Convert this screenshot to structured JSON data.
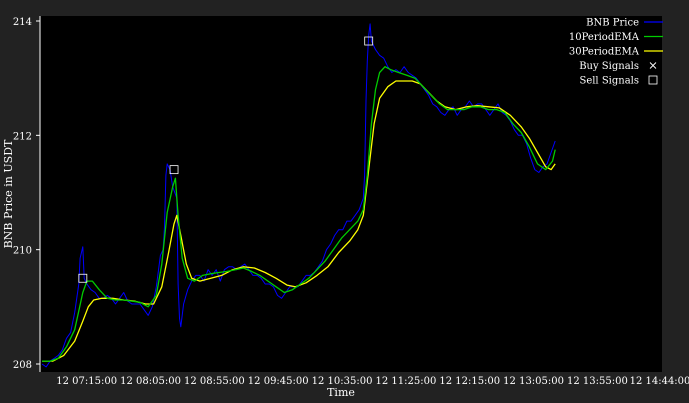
{
  "chart_data": {
    "type": "line",
    "title": "",
    "xlabel": "Time",
    "ylabel": "BNB Price in USDT",
    "ylim": [
      208,
      214
    ],
    "yticks": [
      208,
      210,
      212,
      214
    ],
    "x_range_minutes": [
      0,
      454
    ],
    "xticks": [
      {
        "label": "12 07:15:00",
        "minute": 35
      },
      {
        "label": "12 08:05:00",
        "minute": 85
      },
      {
        "label": "12 08:55:00",
        "minute": 135
      },
      {
        "label": "12 09:45:00",
        "minute": 185
      },
      {
        "label": "12 10:35:00",
        "minute": 235
      },
      {
        "label": "12 11:25:00",
        "minute": 285
      },
      {
        "label": "12 12:15:00",
        "minute": 335
      },
      {
        "label": "12 13:05:00",
        "minute": 385
      },
      {
        "label": "12 13:55:00",
        "minute": 435
      },
      {
        "label": "12 14:44:00",
        "minute": 484
      }
    ],
    "legend_placement": "top-right",
    "colors": {
      "price": "#0000ff",
      "ema10": "#00cc00",
      "ema30": "#ffff00",
      "background": "#000000",
      "markers": "#ffffff"
    },
    "series": [
      {
        "name": "BNB Price",
        "key": "price",
        "points": [
          [
            0,
            208.0
          ],
          [
            3,
            207.95
          ],
          [
            6,
            208.05
          ],
          [
            9,
            208.1
          ],
          [
            12,
            208.15
          ],
          [
            15,
            208.25
          ],
          [
            18,
            208.45
          ],
          [
            21,
            208.55
          ],
          [
            24,
            208.9
          ],
          [
            27,
            209.4
          ],
          [
            28,
            209.85
          ],
          [
            30,
            210.05
          ],
          [
            31,
            209.5
          ],
          [
            33,
            209.4
          ],
          [
            36,
            209.3
          ],
          [
            39,
            209.25
          ],
          [
            42,
            209.15
          ],
          [
            45,
            209.15
          ],
          [
            48,
            209.2
          ],
          [
            51,
            209.15
          ],
          [
            54,
            209.05
          ],
          [
            57,
            209.15
          ],
          [
            60,
            209.25
          ],
          [
            63,
            209.1
          ],
          [
            66,
            209.05
          ],
          [
            69,
            209.05
          ],
          [
            72,
            209.05
          ],
          [
            75,
            208.95
          ],
          [
            78,
            208.85
          ],
          [
            81,
            209.0
          ],
          [
            84,
            209.35
          ],
          [
            87,
            209.9
          ],
          [
            89,
            210.0
          ],
          [
            90,
            210.4
          ],
          [
            91,
            211.3
          ],
          [
            92,
            211.5
          ],
          [
            94,
            211.4
          ],
          [
            96,
            211.1
          ],
          [
            99,
            210.9
          ],
          [
            100,
            209.4
          ],
          [
            101,
            208.8
          ],
          [
            102,
            208.65
          ],
          [
            104,
            209.05
          ],
          [
            107,
            209.3
          ],
          [
            110,
            209.45
          ],
          [
            113,
            209.55
          ],
          [
            116,
            209.55
          ],
          [
            119,
            209.45
          ],
          [
            122,
            209.65
          ],
          [
            125,
            209.55
          ],
          [
            128,
            209.65
          ],
          [
            131,
            209.45
          ],
          [
            134,
            209.65
          ],
          [
            137,
            209.7
          ],
          [
            140,
            209.7
          ],
          [
            143,
            209.65
          ],
          [
            146,
            209.7
          ],
          [
            149,
            209.75
          ],
          [
            152,
            209.65
          ],
          [
            155,
            209.55
          ],
          [
            158,
            209.55
          ],
          [
            161,
            209.5
          ],
          [
            164,
            209.4
          ],
          [
            167,
            209.4
          ],
          [
            170,
            209.35
          ],
          [
            173,
            209.2
          ],
          [
            176,
            209.15
          ],
          [
            179,
            209.25
          ],
          [
            182,
            209.35
          ],
          [
            185,
            209.35
          ],
          [
            188,
            209.35
          ],
          [
            191,
            209.45
          ],
          [
            194,
            209.55
          ],
          [
            197,
            209.55
          ],
          [
            200,
            209.6
          ],
          [
            203,
            209.7
          ],
          [
            206,
            209.8
          ],
          [
            209,
            210.0
          ],
          [
            212,
            210.1
          ],
          [
            215,
            210.25
          ],
          [
            218,
            210.35
          ],
          [
            221,
            210.35
          ],
          [
            224,
            210.5
          ],
          [
            227,
            210.5
          ],
          [
            230,
            210.6
          ],
          [
            233,
            210.7
          ],
          [
            236,
            210.9
          ],
          [
            237,
            211.3
          ],
          [
            238,
            212.6
          ],
          [
            239,
            213.3
          ],
          [
            240,
            213.75
          ],
          [
            241,
            213.95
          ],
          [
            242,
            213.65
          ],
          [
            245,
            213.5
          ],
          [
            248,
            213.4
          ],
          [
            251,
            213.35
          ],
          [
            254,
            213.2
          ],
          [
            257,
            213.1
          ],
          [
            260,
            213.15
          ],
          [
            263,
            213.1
          ],
          [
            266,
            213.2
          ],
          [
            269,
            213.1
          ],
          [
            272,
            213.05
          ],
          [
            275,
            213.0
          ],
          [
            278,
            212.9
          ],
          [
            281,
            212.8
          ],
          [
            284,
            212.7
          ],
          [
            287,
            212.55
          ],
          [
            290,
            212.5
          ],
          [
            293,
            212.4
          ],
          [
            296,
            212.35
          ],
          [
            299,
            212.45
          ],
          [
            302,
            212.5
          ],
          [
            305,
            212.35
          ],
          [
            308,
            212.45
          ],
          [
            311,
            212.5
          ],
          [
            314,
            212.6
          ],
          [
            317,
            212.5
          ],
          [
            320,
            212.55
          ],
          [
            323,
            212.55
          ],
          [
            326,
            212.45
          ],
          [
            329,
            212.35
          ],
          [
            332,
            212.45
          ],
          [
            335,
            212.55
          ],
          [
            338,
            212.4
          ],
          [
            341,
            212.35
          ],
          [
            344,
            212.25
          ],
          [
            347,
            212.1
          ],
          [
            350,
            212.0
          ],
          [
            353,
            212.0
          ],
          [
            356,
            211.85
          ],
          [
            359,
            211.6
          ],
          [
            362,
            211.4
          ],
          [
            365,
            211.35
          ],
          [
            368,
            211.45
          ],
          [
            371,
            211.5
          ],
          [
            374,
            211.7
          ],
          [
            377,
            211.9
          ]
        ]
      },
      {
        "name": "10PeriodEMA",
        "key": "ema10",
        "points": [
          [
            0,
            208.05
          ],
          [
            6,
            208.05
          ],
          [
            12,
            208.1
          ],
          [
            18,
            208.3
          ],
          [
            24,
            208.6
          ],
          [
            30,
            209.25
          ],
          [
            33,
            209.45
          ],
          [
            37,
            209.45
          ],
          [
            42,
            209.3
          ],
          [
            48,
            209.15
          ],
          [
            54,
            209.12
          ],
          [
            60,
            209.12
          ],
          [
            66,
            209.1
          ],
          [
            72,
            209.08
          ],
          [
            78,
            209.0
          ],
          [
            84,
            209.2
          ],
          [
            88,
            209.75
          ],
          [
            92,
            210.65
          ],
          [
            96,
            211.1
          ],
          [
            98,
            211.25
          ],
          [
            100,
            210.6
          ],
          [
            103,
            209.85
          ],
          [
            107,
            209.5
          ],
          [
            112,
            209.45
          ],
          [
            118,
            209.55
          ],
          [
            124,
            209.58
          ],
          [
            130,
            209.6
          ],
          [
            136,
            209.62
          ],
          [
            142,
            209.65
          ],
          [
            148,
            209.68
          ],
          [
            154,
            209.62
          ],
          [
            160,
            209.55
          ],
          [
            166,
            209.45
          ],
          [
            172,
            209.35
          ],
          [
            178,
            209.25
          ],
          [
            184,
            209.3
          ],
          [
            190,
            209.4
          ],
          [
            196,
            209.5
          ],
          [
            202,
            209.65
          ],
          [
            208,
            209.8
          ],
          [
            214,
            210.0
          ],
          [
            220,
            210.2
          ],
          [
            226,
            210.35
          ],
          [
            232,
            210.5
          ],
          [
            236,
            210.7
          ],
          [
            239,
            211.3
          ],
          [
            242,
            212.2
          ],
          [
            245,
            212.8
          ],
          [
            248,
            213.1
          ],
          [
            252,
            213.2
          ],
          [
            256,
            213.15
          ],
          [
            262,
            213.1
          ],
          [
            268,
            213.05
          ],
          [
            274,
            213.0
          ],
          [
            280,
            212.85
          ],
          [
            286,
            212.7
          ],
          [
            292,
            212.55
          ],
          [
            298,
            212.45
          ],
          [
            304,
            212.45
          ],
          [
            310,
            212.45
          ],
          [
            316,
            212.5
          ],
          [
            322,
            212.5
          ],
          [
            328,
            212.45
          ],
          [
            334,
            212.45
          ],
          [
            340,
            212.4
          ],
          [
            346,
            212.2
          ],
          [
            352,
            212.05
          ],
          [
            358,
            211.8
          ],
          [
            364,
            211.5
          ],
          [
            370,
            211.4
          ],
          [
            375,
            211.55
          ],
          [
            377,
            211.75
          ]
        ]
      },
      {
        "name": "30PeriodEMA",
        "key": "ema30",
        "points": [
          [
            0,
            208.05
          ],
          [
            8,
            208.05
          ],
          [
            16,
            208.15
          ],
          [
            24,
            208.4
          ],
          [
            30,
            208.75
          ],
          [
            34,
            209.0
          ],
          [
            38,
            209.12
          ],
          [
            44,
            209.15
          ],
          [
            52,
            209.15
          ],
          [
            60,
            209.12
          ],
          [
            68,
            209.1
          ],
          [
            76,
            209.05
          ],
          [
            82,
            209.05
          ],
          [
            88,
            209.35
          ],
          [
            93,
            209.95
          ],
          [
            97,
            210.45
          ],
          [
            99,
            210.6
          ],
          [
            102,
            210.25
          ],
          [
            106,
            209.75
          ],
          [
            110,
            209.5
          ],
          [
            116,
            209.45
          ],
          [
            124,
            209.5
          ],
          [
            132,
            209.55
          ],
          [
            140,
            209.65
          ],
          [
            148,
            209.7
          ],
          [
            156,
            209.68
          ],
          [
            164,
            209.6
          ],
          [
            172,
            209.5
          ],
          [
            180,
            209.38
          ],
          [
            186,
            209.35
          ],
          [
            194,
            209.42
          ],
          [
            202,
            209.55
          ],
          [
            210,
            209.7
          ],
          [
            218,
            209.95
          ],
          [
            226,
            210.15
          ],
          [
            232,
            210.35
          ],
          [
            236,
            210.6
          ],
          [
            240,
            211.4
          ],
          [
            244,
            212.2
          ],
          [
            248,
            212.65
          ],
          [
            254,
            212.85
          ],
          [
            260,
            212.95
          ],
          [
            266,
            212.95
          ],
          [
            272,
            212.95
          ],
          [
            278,
            212.9
          ],
          [
            284,
            212.75
          ],
          [
            290,
            212.6
          ],
          [
            296,
            212.5
          ],
          [
            304,
            212.45
          ],
          [
            312,
            212.5
          ],
          [
            320,
            212.52
          ],
          [
            328,
            212.5
          ],
          [
            336,
            212.48
          ],
          [
            344,
            212.35
          ],
          [
            352,
            212.15
          ],
          [
            358,
            211.95
          ],
          [
            364,
            211.7
          ],
          [
            370,
            211.45
          ],
          [
            374,
            211.4
          ],
          [
            377,
            211.5
          ]
        ]
      }
    ],
    "buy_signals": [],
    "sell_signals": [
      {
        "x": 30,
        "y": 209.5
      },
      {
        "x": 97,
        "y": 211.4
      },
      {
        "x": 240,
        "y": 213.65
      }
    ],
    "legend": [
      {
        "label": "BNB Price",
        "kind": "line",
        "color": "#0000ff"
      },
      {
        "label": "10PeriodEMA",
        "kind": "line",
        "color": "#00cc00"
      },
      {
        "label": "30PeriodEMA",
        "kind": "line",
        "color": "#ffff00"
      },
      {
        "label": "Buy Signals",
        "kind": "x-marker",
        "color": "#ffffff"
      },
      {
        "label": "Sell Signals",
        "kind": "square-marker",
        "color": "#ffffff"
      }
    ]
  }
}
